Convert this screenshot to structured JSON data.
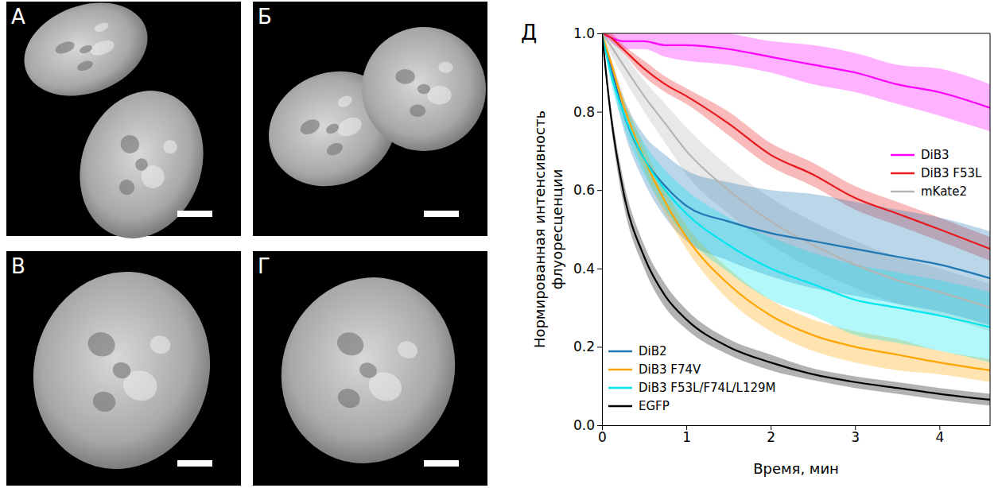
{
  "images": [
    {
      "label": "А"
    },
    {
      "label": "Б"
    },
    {
      "label": "В"
    },
    {
      "label": "Г"
    }
  ],
  "chart_data": {
    "type": "line",
    "panel_label": "Д",
    "x_label": "Время, мин",
    "y_label": "Нормированная интенсивность флуоресценции",
    "xlim": [
      0,
      4.6
    ],
    "ylim": [
      0,
      1
    ],
    "xticks": [
      0,
      1,
      2,
      3,
      4
    ],
    "yticks": [
      {
        "value": 0,
        "label": "0.0"
      },
      {
        "value": 0.2,
        "label": "0.2"
      },
      {
        "value": 0.4,
        "label": "0.4"
      },
      {
        "value": 0.6,
        "label": "0.6"
      },
      {
        "value": 0.8,
        "label": "0.8"
      },
      {
        "value": 1,
        "label": "1.0"
      }
    ],
    "grid": false,
    "x": [
      0,
      0.1,
      0.25,
      0.5,
      0.75,
      1,
      1.5,
      2,
      2.5,
      3,
      3.5,
      4,
      4.6
    ],
    "series": [
      {
        "name": "DiB3",
        "color": "#ff00ff",
        "legend": "upper-right",
        "values": [
          1,
          0.99,
          0.98,
          0.98,
          0.97,
          0.97,
          0.96,
          0.94,
          0.92,
          0.9,
          0.87,
          0.85,
          0.81
        ],
        "error": [
          0,
          0.01,
          0.02,
          0.02,
          0.03,
          0.04,
          0.04,
          0.04,
          0.05,
          0.05,
          0.05,
          0.06,
          0.06
        ]
      },
      {
        "name": "DiB3 F53L",
        "color": "#e8191e",
        "legend": "upper-right",
        "values": [
          1,
          0.99,
          0.96,
          0.91,
          0.87,
          0.84,
          0.77,
          0.69,
          0.64,
          0.58,
          0.54,
          0.5,
          0.45
        ],
        "error": [
          0,
          0.01,
          0.01,
          0.02,
          0.02,
          0.02,
          0.03,
          0.03,
          0.03,
          0.03,
          0.03,
          0.03,
          0.03
        ]
      },
      {
        "name": "mKate2",
        "color": "#b4b4b4",
        "legend": "upper-right",
        "values": [
          1,
          0.97,
          0.92,
          0.84,
          0.77,
          0.7,
          0.6,
          0.52,
          0.46,
          0.41,
          0.37,
          0.34,
          0.3
        ],
        "error": [
          0,
          0.02,
          0.03,
          0.04,
          0.05,
          0.06,
          0.06,
          0.06,
          0.06,
          0.06,
          0.06,
          0.06,
          0.06
        ]
      },
      {
        "name": "DiB2",
        "color": "#1f77b4",
        "legend": "lower-left",
        "values": [
          1,
          0.92,
          0.8,
          0.68,
          0.61,
          0.56,
          0.52,
          0.49,
          0.47,
          0.45,
          0.43,
          0.41,
          0.375
        ],
        "error": [
          0,
          0.02,
          0.04,
          0.06,
          0.08,
          0.09,
          0.1,
          0.11,
          0.12,
          0.12,
          0.12,
          0.12,
          0.12
        ]
      },
      {
        "name": "DiB3 F74V",
        "color": "#ffa500",
        "legend": "lower-left",
        "values": [
          1,
          0.93,
          0.82,
          0.68,
          0.57,
          0.48,
          0.36,
          0.28,
          0.23,
          0.2,
          0.18,
          0.16,
          0.14
        ],
        "error": [
          0,
          0.01,
          0.02,
          0.03,
          0.03,
          0.03,
          0.04,
          0.04,
          0.04,
          0.04,
          0.04,
          0.03,
          0.03
        ]
      },
      {
        "name": "DiB3 F53L/F74L/L129M",
        "color": "#00e5ee",
        "legend": "lower-left",
        "values": [
          1,
          0.9,
          0.8,
          0.68,
          0.6,
          0.54,
          0.46,
          0.4,
          0.36,
          0.32,
          0.3,
          0.28,
          0.25
        ],
        "error": [
          0,
          0.02,
          0.03,
          0.04,
          0.05,
          0.06,
          0.07,
          0.08,
          0.08,
          0.09,
          0.09,
          0.09,
          0.09
        ]
      },
      {
        "name": "EGFP",
        "color": "#000000",
        "legend": "lower-left",
        "values": [
          1,
          0.8,
          0.6,
          0.43,
          0.33,
          0.27,
          0.2,
          0.16,
          0.13,
          0.11,
          0.095,
          0.08,
          0.065
        ],
        "error": [
          0,
          0.02,
          0.03,
          0.03,
          0.03,
          0.025,
          0.02,
          0.02,
          0.015,
          0.015,
          0.015,
          0.015,
          0.015
        ]
      }
    ]
  }
}
